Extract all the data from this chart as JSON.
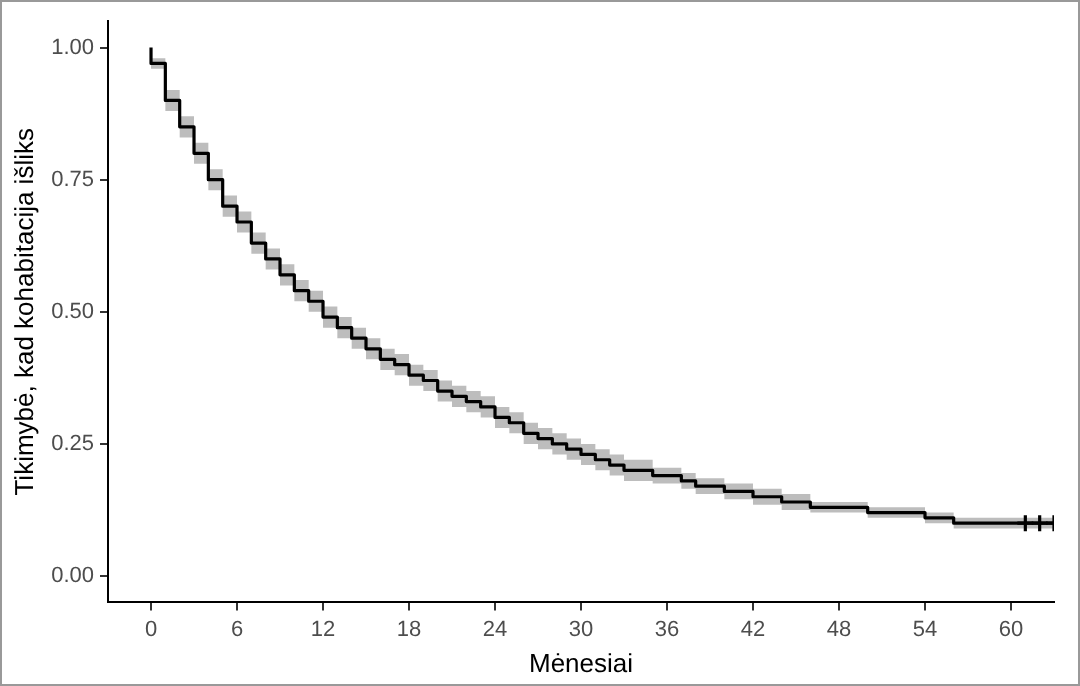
{
  "chart_data": {
    "type": "step",
    "xlabel": "Mėnesiai",
    "ylabel": "Tikimybė, kad kohabitacija išliks",
    "xlim": [
      -3,
      63
    ],
    "ylim": [
      -0.05,
      1.05
    ],
    "xticks": [
      0,
      6,
      12,
      18,
      24,
      30,
      36,
      42,
      48,
      54,
      60
    ],
    "yticks": [
      {
        "value": 0,
        "label": "0.00"
      },
      {
        "value": 0.25,
        "label": "0.25"
      },
      {
        "value": 0.5,
        "label": "0.50"
      },
      {
        "value": 0.75,
        "label": "0.75"
      },
      {
        "value": 1,
        "label": "1.00"
      }
    ],
    "grid": false,
    "legend": false,
    "series": [
      {
        "color": "#000000",
        "x": [
          0,
          1,
          2,
          3,
          4,
          5,
          6,
          7,
          8,
          9,
          10,
          11,
          12,
          13,
          14,
          15,
          16,
          17,
          18,
          19,
          20,
          21,
          22,
          23,
          24,
          25,
          26,
          27,
          28,
          29,
          30,
          31,
          32,
          33,
          35,
          37,
          38,
          40,
          42,
          44,
          46,
          48,
          50,
          52,
          54,
          56,
          58,
          60,
          63
        ],
        "values": [
          1.0,
          0.97,
          0.9,
          0.85,
          0.8,
          0.75,
          0.7,
          0.67,
          0.63,
          0.6,
          0.57,
          0.54,
          0.52,
          0.49,
          0.47,
          0.45,
          0.43,
          0.41,
          0.4,
          0.38,
          0.37,
          0.35,
          0.34,
          0.33,
          0.32,
          0.3,
          0.29,
          0.27,
          0.26,
          0.25,
          0.24,
          0.23,
          0.22,
          0.21,
          0.2,
          0.19,
          0.18,
          0.17,
          0.16,
          0.15,
          0.14,
          0.13,
          0.13,
          0.12,
          0.12,
          0.11,
          0.1,
          0.1,
          0.1
        ],
        "lower": [
          1.0,
          0.96,
          0.88,
          0.83,
          0.78,
          0.73,
          0.68,
          0.65,
          0.61,
          0.58,
          0.55,
          0.52,
          0.5,
          0.47,
          0.45,
          0.43,
          0.41,
          0.39,
          0.38,
          0.36,
          0.35,
          0.33,
          0.32,
          0.31,
          0.3,
          0.28,
          0.27,
          0.25,
          0.24,
          0.23,
          0.22,
          0.21,
          0.2,
          0.19,
          0.18,
          0.175,
          0.165,
          0.155,
          0.145,
          0.135,
          0.125,
          0.12,
          0.12,
          0.11,
          0.11,
          0.1,
          0.09,
          0.09,
          0.09
        ],
        "upper": [
          1.0,
          0.98,
          0.92,
          0.87,
          0.82,
          0.77,
          0.72,
          0.69,
          0.65,
          0.62,
          0.59,
          0.56,
          0.54,
          0.51,
          0.49,
          0.47,
          0.45,
          0.43,
          0.42,
          0.4,
          0.39,
          0.37,
          0.36,
          0.35,
          0.34,
          0.32,
          0.31,
          0.29,
          0.28,
          0.27,
          0.26,
          0.25,
          0.24,
          0.23,
          0.22,
          0.205,
          0.195,
          0.185,
          0.175,
          0.165,
          0.155,
          0.14,
          0.14,
          0.13,
          0.13,
          0.12,
          0.11,
          0.11,
          0.11
        ]
      },
      {
        "type": "scatter",
        "color": "#000000",
        "marker": "cross",
        "x": [
          61,
          62,
          63
        ],
        "values": [
          0.1,
          0.1,
          0.1
        ]
      }
    ]
  }
}
